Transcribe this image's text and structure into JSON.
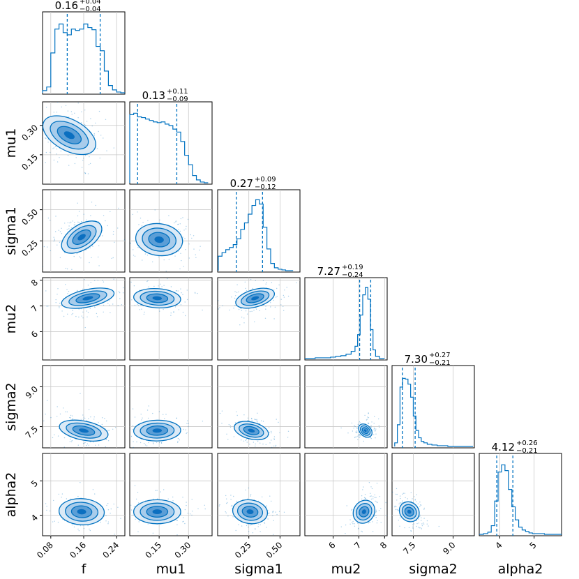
{
  "chart_data": {
    "type": "corner",
    "parameters": [
      "f",
      "mu1",
      "sigma1",
      "mu2",
      "sigma2",
      "alpha2"
    ],
    "ranges": {
      "f": [
        0.06,
        0.26
      ],
      "mu1": [
        0.0,
        0.42
      ],
      "sigma1": [
        0.0,
        0.66
      ],
      "mu2": [
        4.9,
        8.1
      ],
      "sigma2": [
        6.7,
        9.8
      ],
      "alpha2": [
        3.4,
        5.8
      ]
    },
    "ticks": {
      "f": [
        0.08,
        0.16,
        0.24
      ],
      "mu1": [
        0.15,
        0.3
      ],
      "sigma1": [
        0.25,
        0.5
      ],
      "mu2": [
        6,
        7,
        8
      ],
      "sigma2": [
        7.5,
        9.0
      ],
      "alpha2": [
        4,
        5
      ]
    },
    "tick_labels": {
      "f": [
        "0.08",
        "0.16",
        "0.24"
      ],
      "mu1": [
        "0.15",
        "0.30"
      ],
      "sigma1": [
        "0.25",
        "0.50"
      ],
      "mu2": [
        "6",
        "7",
        "8"
      ],
      "sigma2": [
        "7.5",
        "9.0"
      ],
      "alpha2": [
        "4",
        "5"
      ]
    },
    "summaries": [
      {
        "param": "f",
        "median": "0.16",
        "plus": "+0.04",
        "minus": "−0.04",
        "q16": 0.12,
        "q84": 0.2
      },
      {
        "param": "mu1",
        "median": "0.13",
        "plus": "+0.11",
        "minus": "−0.09",
        "q16": 0.04,
        "q84": 0.24
      },
      {
        "param": "sigma1",
        "median": "0.27",
        "plus": "+0.09",
        "minus": "−0.12",
        "q16": 0.15,
        "q84": 0.36
      },
      {
        "param": "mu2",
        "median": "7.27",
        "plus": "+0.19",
        "minus": "−0.24",
        "q16": 7.03,
        "q84": 7.46
      },
      {
        "param": "sigma2",
        "median": "7.30",
        "plus": "+0.27",
        "minus": "−0.21",
        "q16": 7.09,
        "q84": 7.57
      },
      {
        "param": "alpha2",
        "median": "4.12",
        "plus": "+0.26",
        "minus": "−0.21",
        "q16": 3.91,
        "q84": 4.38
      }
    ],
    "marginals": [
      {
        "param": "f",
        "x": [
          0.065,
          0.075,
          0.085,
          0.095,
          0.105,
          0.115,
          0.125,
          0.135,
          0.145,
          0.155,
          0.165,
          0.175,
          0.185,
          0.195,
          0.205,
          0.215,
          0.225,
          0.235,
          0.245,
          0.255
        ],
        "density": [
          0.03,
          0.08,
          0.55,
          0.88,
          0.95,
          0.83,
          0.8,
          0.88,
          0.86,
          0.88,
          0.95,
          0.9,
          0.87,
          0.64,
          0.58,
          0.3,
          0.1,
          0.04,
          0.01,
          0.0
        ]
      },
      {
        "param": "mu1",
        "x": [
          0.01,
          0.03,
          0.05,
          0.07,
          0.09,
          0.11,
          0.13,
          0.15,
          0.17,
          0.19,
          0.21,
          0.23,
          0.25,
          0.27,
          0.29,
          0.31,
          0.33,
          0.35,
          0.37,
          0.39
        ],
        "density": [
          0.94,
          0.96,
          0.91,
          0.9,
          0.88,
          0.86,
          0.84,
          0.83,
          0.84,
          0.81,
          0.79,
          0.74,
          0.7,
          0.57,
          0.38,
          0.25,
          0.1,
          0.04,
          0.01,
          0.0
        ]
      },
      {
        "param": "sigma1",
        "x": [
          0.02,
          0.05,
          0.08,
          0.11,
          0.14,
          0.17,
          0.2,
          0.23,
          0.26,
          0.29,
          0.32,
          0.35,
          0.38,
          0.41,
          0.44,
          0.47,
          0.5,
          0.53,
          0.56,
          0.59
        ],
        "density": [
          0.2,
          0.25,
          0.29,
          0.32,
          0.36,
          0.44,
          0.57,
          0.66,
          0.78,
          0.9,
          0.98,
          0.92,
          0.6,
          0.3,
          0.1,
          0.04,
          0.02,
          0.01,
          0.0,
          0.0
        ]
      },
      {
        "param": "mu2",
        "x": [
          5.0,
          5.2,
          5.4,
          5.6,
          5.8,
          6.0,
          6.2,
          6.4,
          6.6,
          6.8,
          6.9,
          7.0,
          7.1,
          7.2,
          7.3,
          7.4,
          7.5,
          7.6,
          7.7,
          7.9
        ],
        "density": [
          0.0,
          0.0,
          0.01,
          0.01,
          0.01,
          0.02,
          0.03,
          0.04,
          0.06,
          0.1,
          0.17,
          0.33,
          0.6,
          0.88,
          0.98,
          0.82,
          0.4,
          0.12,
          0.03,
          0.0
        ]
      },
      {
        "param": "sigma2",
        "x": [
          6.85,
          6.95,
          7.05,
          7.15,
          7.25,
          7.35,
          7.45,
          7.55,
          7.65,
          7.75,
          7.85,
          7.95,
          8.1,
          8.3,
          8.5,
          8.7,
          8.9,
          9.1,
          9.3,
          9.6
        ],
        "density": [
          0.05,
          0.3,
          0.82,
          0.94,
          0.93,
          0.86,
          0.68,
          0.42,
          0.22,
          0.12,
          0.07,
          0.05,
          0.03,
          0.02,
          0.01,
          0.01,
          0.0,
          0.0,
          0.0,
          0.0
        ]
      },
      {
        "param": "alpha2",
        "x": [
          3.45,
          3.6,
          3.7,
          3.8,
          3.9,
          4.0,
          4.1,
          4.2,
          4.3,
          4.4,
          4.5,
          4.6,
          4.7,
          4.8,
          4.9,
          5.0,
          5.2,
          5.4,
          5.6,
          5.75
        ],
        "density": [
          0.0,
          0.01,
          0.03,
          0.12,
          0.46,
          0.86,
          0.96,
          0.88,
          0.62,
          0.38,
          0.2,
          0.1,
          0.06,
          0.04,
          0.02,
          0.01,
          0.01,
          0.0,
          0.0,
          0.0
        ]
      }
    ],
    "joint_contours": [
      {
        "x": "f",
        "y": "mu1",
        "center": [
          0.125,
          0.25
        ],
        "rx": 0.07,
        "ry": 0.12,
        "rho": -0.75,
        "tail": [
          0.19,
          0.04
        ]
      },
      {
        "x": "f",
        "y": "sigma1",
        "center": [
          0.155,
          0.28
        ],
        "rx": 0.055,
        "ry": 0.16,
        "rho": 0.85,
        "tail": null
      },
      {
        "x": "f",
        "y": "mu2",
        "center": [
          0.17,
          7.3
        ],
        "rx": 0.065,
        "ry": 0.45,
        "rho": 0.55,
        "tail": null
      },
      {
        "x": "f",
        "y": "sigma2",
        "center": [
          0.16,
          7.35
        ],
        "rx": 0.06,
        "ry": 0.45,
        "rho": -0.45,
        "tail": null
      },
      {
        "x": "f",
        "y": "alpha2",
        "center": [
          0.155,
          4.1
        ],
        "rx": 0.055,
        "ry": 0.4,
        "rho": -0.1,
        "tail": null
      },
      {
        "x": "mu1",
        "y": "sigma1",
        "center": [
          0.15,
          0.26
        ],
        "rx": 0.12,
        "ry": 0.14,
        "rho": -0.2,
        "tail": null
      },
      {
        "x": "mu1",
        "y": "mu2",
        "center": [
          0.14,
          7.3
        ],
        "rx": 0.12,
        "ry": 0.4,
        "rho": -0.15,
        "tail": null
      },
      {
        "x": "mu1",
        "y": "sigma2",
        "center": [
          0.14,
          7.35
        ],
        "rx": 0.12,
        "ry": 0.4,
        "rho": 0.05,
        "tail": null
      },
      {
        "x": "mu1",
        "y": "alpha2",
        "center": [
          0.14,
          4.1
        ],
        "rx": 0.12,
        "ry": 0.35,
        "rho": 0.0,
        "tail": null
      },
      {
        "x": "sigma1",
        "y": "mu2",
        "center": [
          0.3,
          7.3
        ],
        "rx": 0.16,
        "ry": 0.45,
        "rho": 0.55,
        "tail": null
      },
      {
        "x": "sigma1",
        "y": "sigma2",
        "center": [
          0.27,
          7.35
        ],
        "rx": 0.14,
        "ry": 0.4,
        "rho": -0.45,
        "tail": null
      },
      {
        "x": "sigma1",
        "y": "alpha2",
        "center": [
          0.26,
          4.1
        ],
        "rx": 0.14,
        "ry": 0.38,
        "rho": -0.2,
        "tail": null
      },
      {
        "x": "mu2",
        "y": "sigma2",
        "center": [
          7.25,
          7.35
        ],
        "rx": 0.3,
        "ry": 0.35,
        "rho": -0.92,
        "tail": null
      },
      {
        "x": "mu2",
        "y": "alpha2",
        "center": [
          7.2,
          4.1
        ],
        "rx": 0.4,
        "ry": 0.45,
        "rho": -0.5,
        "tail": null
      },
      {
        "x": "sigma2",
        "y": "alpha2",
        "center": [
          7.35,
          4.1
        ],
        "rx": 0.35,
        "ry": 0.45,
        "rho": 0.7,
        "tail": null
      }
    ],
    "contour_levels": [
      0.39,
      0.86,
      0.99
    ],
    "colors": {
      "main": "#0072C1",
      "fill_outer": "#DCEAF6",
      "fill_mid": "#A8CCEB",
      "fill_inner": "#5B9ED6",
      "fill_core": "#0B6FC0"
    }
  }
}
